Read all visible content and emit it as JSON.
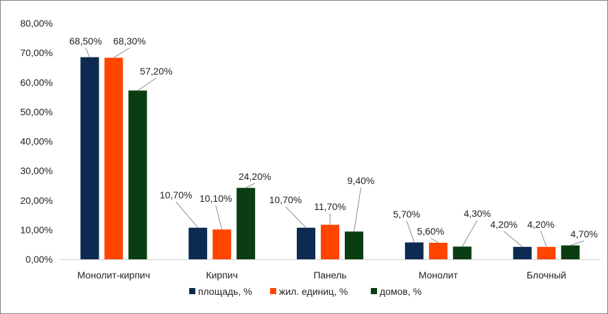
{
  "chart_data": {
    "type": "bar",
    "categories": [
      "Монолит-кирпич",
      "Кирпич",
      "Панель",
      "Монолит",
      "Блочный"
    ],
    "series": [
      {
        "name": "площадь, %",
        "color": "#0d2b52",
        "values": [
          68.5,
          10.7,
          10.7,
          5.7,
          4.2
        ],
        "labels": [
          "68,50%",
          "10,70%",
          "10,70%",
          "5,70%",
          "4,20%"
        ]
      },
      {
        "name": "жил. единиц, %",
        "color": "#ff4500",
        "values": [
          68.3,
          10.1,
          11.7,
          5.6,
          4.2
        ],
        "labels": [
          "68,30%",
          "10,10%",
          "11,70%",
          "5,60%",
          "4,20%"
        ]
      },
      {
        "name": "домов, %",
        "color": "#0b3d12",
        "values": [
          57.2,
          24.2,
          9.4,
          4.3,
          4.7
        ],
        "labels": [
          "57,20%",
          "24,20%",
          "9,40%",
          "4,30%",
          "4,70%"
        ]
      }
    ],
    "y_ticks": [
      "0,00%",
      "10,00%",
      "20,00%",
      "30,00%",
      "40,00%",
      "50,00%",
      "60,00%",
      "70,00%",
      "80,00%"
    ],
    "ylim": [
      0,
      80
    ],
    "grid": false,
    "legend_position": "bottom"
  }
}
